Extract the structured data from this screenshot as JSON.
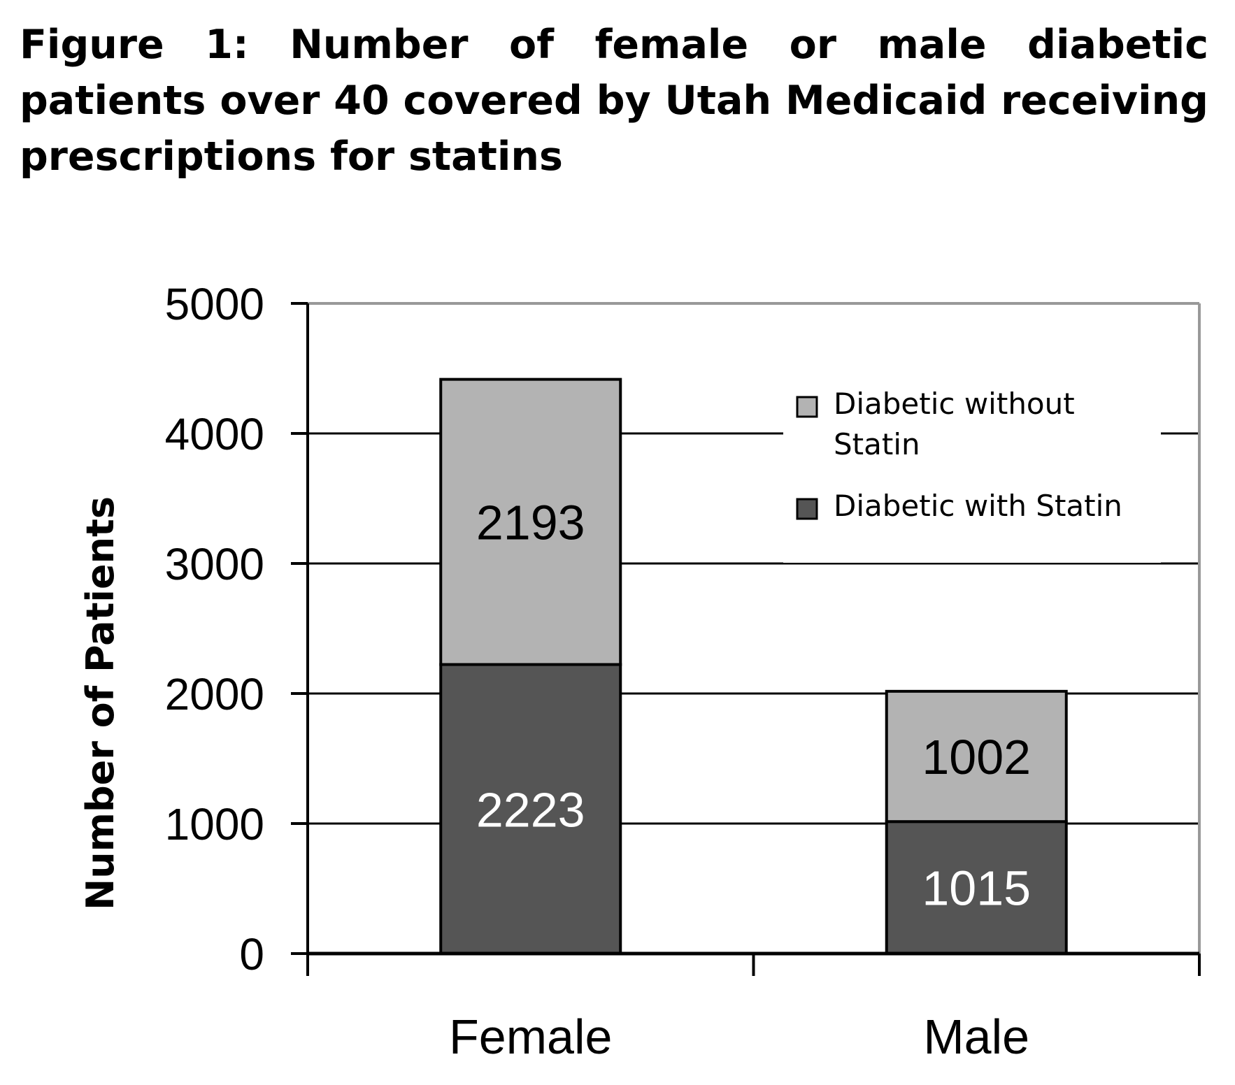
{
  "chart_data": {
    "type": "bar",
    "stacked": true,
    "title": "Figure 1: Number of female or male diabetic patients over 40 covered by Utah Medicaid receiving prescriptions for statins",
    "xlabel": "",
    "ylabel": "Number of Patients",
    "categories": [
      "Female",
      "Male"
    ],
    "series": [
      {
        "name": "Diabetic with Statin",
        "values": [
          2223,
          1015
        ],
        "color": "#555555",
        "label_color": "#ffffff"
      },
      {
        "name": "Diabetic without Statin",
        "values": [
          2193,
          1002
        ],
        "color": "#b3b3b3",
        "label_color": "#000000"
      }
    ],
    "legend_entries": [
      {
        "lines": [
          "Diabetic without",
          "Statin"
        ],
        "color": "#b3b3b3"
      },
      {
        "lines": [
          "Diabetic with  Statin"
        ],
        "color": "#555555"
      }
    ],
    "ylim": [
      0,
      5000
    ],
    "yticks": [
      0,
      1000,
      2000,
      3000,
      4000,
      5000
    ],
    "grid": true,
    "legend_position": "top-right"
  }
}
